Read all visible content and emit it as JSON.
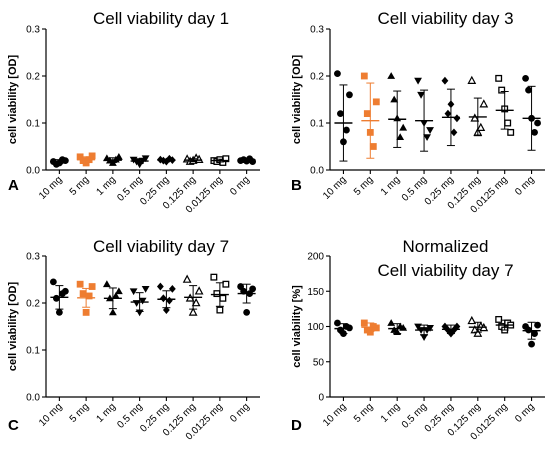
{
  "colors": {
    "axis": "#000000",
    "default_marker": "#000000",
    "highlight_marker": "#ee7d31",
    "highlight_category": "5 mg"
  },
  "chart_data": [
    {
      "type": "scatter",
      "panel_letter": "A",
      "title": "Cell viability day 1",
      "title_line2": "",
      "xlabel": "",
      "ylabel": "cell viability [OD]",
      "ylim": [
        0,
        0.3
      ],
      "yticks": [
        "0.0",
        "0.1",
        "0.2",
        "0.3"
      ],
      "yticks_values": [
        0,
        0.1,
        0.2,
        0.3
      ],
      "grid": false,
      "categories": [
        "10 mg",
        "5 mg",
        "1 mg",
        "0.5 mg",
        "0.25 mg",
        "0.125 mg",
        "0.0125 mg",
        "0 mg"
      ],
      "markers": [
        "circle",
        "square",
        "triangle",
        "triangle-down",
        "diamond",
        "triangle-open",
        "square-open",
        "circle"
      ],
      "points": [
        [
          0.018,
          0.012,
          0.015,
          0.022,
          0.02
        ],
        [
          0.028,
          0.02,
          0.015,
          0.022,
          0.03
        ],
        [
          0.025,
          0.02,
          0.015,
          0.022,
          0.028
        ],
        [
          0.022,
          0.018,
          0.012,
          0.02,
          0.025
        ],
        [
          0.022,
          0.02,
          0.018,
          0.024,
          0.021
        ],
        [
          0.023,
          0.018,
          0.02,
          0.025,
          0.022
        ],
        [
          0.02,
          0.018,
          0.022,
          0.016,
          0.024
        ],
        [
          0.02,
          0.022,
          0.019,
          0.024,
          0.018
        ]
      ],
      "mean": [
        0.018,
        0.022,
        0.021,
        0.019,
        0.021,
        0.021,
        0.02,
        0.021
      ],
      "sd": [
        0.004,
        0.006,
        0.005,
        0.005,
        0.002,
        0.003,
        0.003,
        0.002
      ]
    },
    {
      "type": "scatter",
      "panel_letter": "B",
      "title": "Cell viability day 3",
      "title_line2": "",
      "xlabel": "",
      "ylabel": "cell viability [OD]",
      "ylim": [
        0,
        0.3
      ],
      "yticks": [
        "0.0",
        "0.1",
        "0.2",
        "0.3"
      ],
      "yticks_values": [
        0,
        0.1,
        0.2,
        0.3
      ],
      "grid": false,
      "categories": [
        "10 mg",
        "5 mg",
        "1 mg",
        "0.5 mg",
        "0.25 mg",
        "0.125 mg",
        "0.0125 mg",
        "0 mg"
      ],
      "markers": [
        "circle",
        "square",
        "triangle",
        "triangle-down",
        "diamond",
        "triangle-open",
        "square-open",
        "circle"
      ],
      "points": [
        [
          0.205,
          0.12,
          0.06,
          0.085,
          0.16
        ],
        [
          0.2,
          0.12,
          0.08,
          0.05,
          0.145
        ],
        [
          0.2,
          0.15,
          0.11,
          0.07,
          0.09
        ],
        [
          0.19,
          0.16,
          0.1,
          0.07,
          0.085
        ],
        [
          0.19,
          0.12,
          0.14,
          0.08,
          0.11
        ],
        [
          0.19,
          0.11,
          0.08,
          0.09,
          0.14
        ],
        [
          0.195,
          0.17,
          0.13,
          0.1,
          0.08
        ],
        [
          0.195,
          0.17,
          0.11,
          0.08,
          0.1
        ]
      ],
      "mean": [
        0.1,
        0.105,
        0.108,
        0.105,
        0.112,
        0.113,
        0.127,
        0.11
      ],
      "sd": [
        0.081,
        0.08,
        0.06,
        0.065,
        0.06,
        0.04,
        0.04,
        0.068
      ]
    },
    {
      "type": "scatter",
      "panel_letter": "C",
      "title": "Cell viability day 7",
      "title_line2": "",
      "xlabel": "",
      "ylabel": "cell viability [OD]",
      "ylim": [
        0,
        0.3
      ],
      "yticks": [
        "0.0",
        "0.1",
        "0.2",
        "0.3"
      ],
      "yticks_values": [
        0,
        0.1,
        0.2,
        0.3
      ],
      "grid": false,
      "categories": [
        "10 mg",
        "5 mg",
        "1 mg",
        "0.5 mg",
        "0.25 mg",
        "0.125 mg",
        "0.0125 mg",
        "0 mg"
      ],
      "markers": [
        "circle",
        "square",
        "triangle",
        "triangle-down",
        "diamond",
        "triangle-open",
        "square-open",
        "circle"
      ],
      "points": [
        [
          0.245,
          0.21,
          0.18,
          0.22,
          0.225
        ],
        [
          0.24,
          0.22,
          0.18,
          0.215,
          0.235
        ],
        [
          0.24,
          0.21,
          0.18,
          0.215,
          0.225
        ],
        [
          0.225,
          0.2,
          0.18,
          0.205,
          0.23
        ],
        [
          0.235,
          0.21,
          0.185,
          0.205,
          0.23
        ],
        [
          0.25,
          0.21,
          0.18,
          0.2,
          0.225
        ],
        [
          0.255,
          0.22,
          0.185,
          0.21,
          0.24
        ],
        [
          0.235,
          0.225,
          0.18,
          0.22,
          0.23
        ]
      ],
      "mean": [
        0.212,
        0.211,
        0.21,
        0.202,
        0.208,
        0.212,
        0.218,
        0.22
      ],
      "sd": [
        0.025,
        0.02,
        0.022,
        0.02,
        0.018,
        0.025,
        0.025,
        0.02
      ]
    },
    {
      "type": "scatter",
      "panel_letter": "D",
      "title": "Normalized",
      "title_line2": "Cell viability day 7",
      "xlabel": "",
      "ylabel": "cell viability [%]",
      "ylim": [
        0,
        200
      ],
      "yticks": [
        "0",
        "50",
        "100",
        "150",
        "200"
      ],
      "yticks_values": [
        0,
        50,
        100,
        150,
        200
      ],
      "grid": false,
      "categories": [
        "10 mg",
        "5 mg",
        "1 mg",
        "0.5 mg",
        "0.25 mg",
        "0.125 mg",
        "0.0125 mg",
        "0 mg"
      ],
      "markers": [
        "circle",
        "square",
        "triangle",
        "triangle-down",
        "diamond",
        "triangle-open",
        "square-open",
        "circle"
      ],
      "points": [
        [
          105,
          95,
          90,
          100,
          98
        ],
        [
          105,
          95,
          92,
          100,
          98
        ],
        [
          105,
          95,
          92,
          100,
          98
        ],
        [
          100,
          95,
          85,
          95,
          98
        ],
        [
          100,
          95,
          90,
          95,
          100
        ],
        [
          108,
          95,
          90,
          100,
          98
        ],
        [
          110,
          100,
          95,
          105,
          102
        ],
        [
          100,
          95,
          75,
          90,
          102
        ]
      ],
      "mean": [
        97,
        99,
        97,
        95,
        96,
        99,
        102,
        94
      ],
      "sd": [
        7,
        6,
        7,
        7,
        6,
        7,
        7,
        12
      ]
    }
  ]
}
